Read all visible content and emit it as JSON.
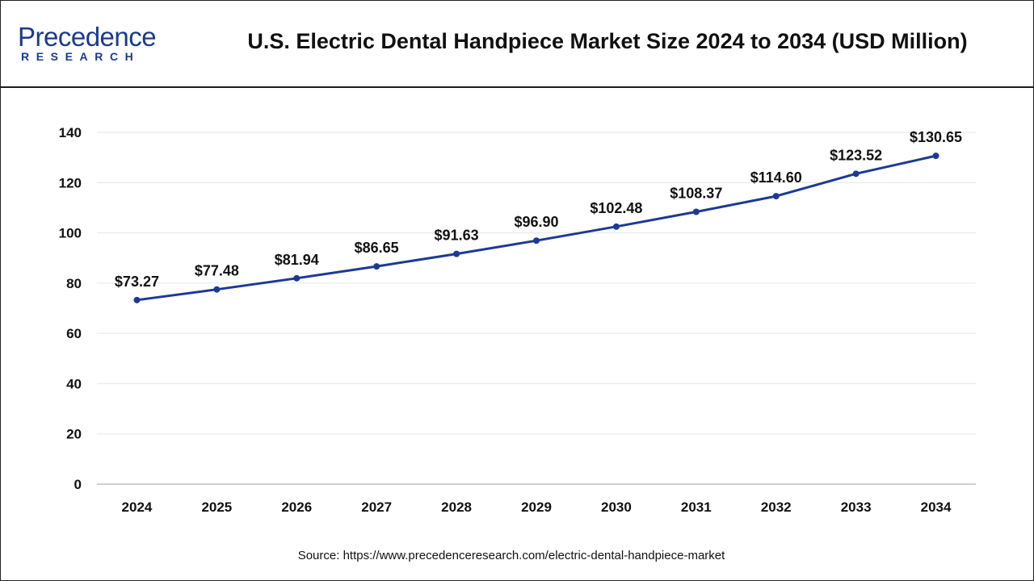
{
  "header": {
    "logo_main": "Precedence",
    "logo_sub": "RESEARCH",
    "title": "U.S. Electric Dental Handpiece Market Size 2024 to 2034 (USD Million)"
  },
  "source_text": "Source: https://www.precedenceresearch.com/electric-dental-handpiece-market",
  "colors": {
    "line": "#1c3a94",
    "brand": "#1a3a8c",
    "grid": "#e6e6e6",
    "axis": "#bfbfbf"
  },
  "chart_data": {
    "type": "line",
    "title": "U.S. Electric Dental Handpiece Market Size 2024 to 2034 (USD Million)",
    "xlabel": "",
    "ylabel": "",
    "categories": [
      "2024",
      "2025",
      "2026",
      "2027",
      "2028",
      "2029",
      "2030",
      "2031",
      "2032",
      "2033",
      "2034"
    ],
    "series": [
      {
        "name": "Market Size (USD Million)",
        "values": [
          73.27,
          77.48,
          81.94,
          86.65,
          91.63,
          96.9,
          102.48,
          108.37,
          114.6,
          123.52,
          130.65
        ],
        "labels": [
          "$73.27",
          "$77.48",
          "$81.94",
          "$86.65",
          "$91.63",
          "$96.90",
          "$102.48",
          "$108.37",
          "$114.60",
          "$123.52",
          "$130.65"
        ]
      }
    ],
    "ylim": [
      0,
      140
    ],
    "yticks": [
      0,
      20,
      40,
      60,
      80,
      100,
      120,
      140
    ],
    "grid": true,
    "legend": "none"
  }
}
